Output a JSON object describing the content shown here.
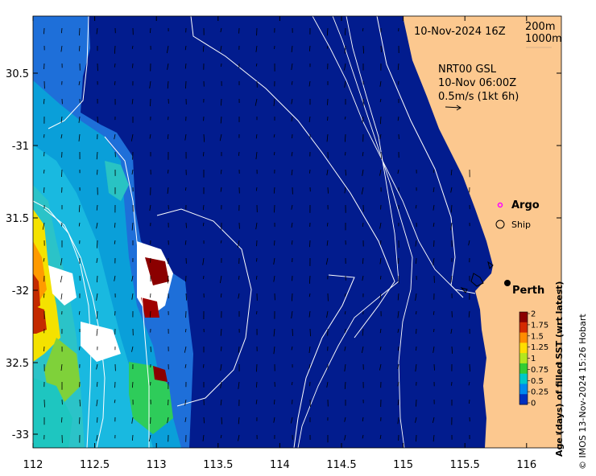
{
  "map": {
    "date_label": "10-Nov-2024 16Z",
    "isobaths": [
      "200m",
      "1000m"
    ],
    "current_info": [
      "NRT00 GSL",
      "10-Nov 06:00Z",
      "0.5m/s (1kt 6h)"
    ],
    "legend": {
      "argo": "Argo",
      "ship": "Ship"
    },
    "place_label": "Perth",
    "lon_ticks": [
      "112",
      "112.5",
      "113",
      "113.5",
      "114",
      "114.5",
      "115",
      "115.5",
      "116"
    ],
    "lat_ticks": [
      "30.5",
      "-31",
      "31.5",
      "-32",
      "32.5",
      "-33"
    ],
    "colors": {
      "ocean": "#021c8e",
      "land": "#fcc88f",
      "argo": "#ff00ff",
      "old_data": "#8b0000"
    }
  },
  "colorbar": {
    "title": "Age (days) of filled SST (wrt latest)",
    "ticks": [
      "2",
      "1.75",
      "1.5",
      "1.25",
      "1",
      "0.75",
      "0.5",
      "0.25",
      "0"
    ],
    "colormap": [
      "#8b0000",
      "#d42a00",
      "#ff8c00",
      "#ffdd00",
      "#b4e61e",
      "#33cc33",
      "#00c8c8",
      "#0088ee",
      "#0030c0"
    ]
  },
  "credit": "© IMOS 13-Nov-2024 15:26 Hobart"
}
